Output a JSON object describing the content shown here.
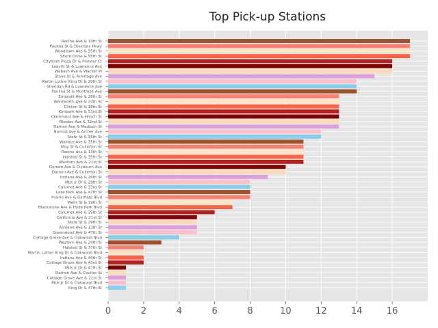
{
  "chart_data": {
    "type": "bar",
    "orientation": "horizontal",
    "title": "Top Pick-up Stations",
    "xlabel": "",
    "ylabel": "",
    "xlim": [
      0,
      18
    ],
    "xticks": [
      0,
      2,
      4,
      6,
      8,
      10,
      12,
      14,
      16
    ],
    "grid": true,
    "style": "ggplot",
    "colors": [
      "#a0522d",
      "#fa8072",
      "#ffe4c4",
      "#ff6347",
      "#b22222",
      "#800000",
      "#ffdab9",
      "#dda0dd",
      "#ffc0cb",
      "#87ceeb"
    ],
    "categories": [
      "Racine Ave & 19th St",
      "Paulina St & Diversey Pkwy",
      "Woodlawn Ave & 55th St",
      "Shore Drive & 55th St",
      "Cityfront Plaza Dr & Pioneer Ct",
      "Leavitt St & Lawrence Ave",
      "Wabash Ave & Wacker Pl",
      "Stave St & Armitage Ave",
      "Martin Luther King Dr & 29th St",
      "Sheridan Rd & Lawrence Ave",
      "Paulina St & Montrose Ave",
      "Emerald Ave & 28th St",
      "Wentworth Ave & 24th St",
      "Clinton St & 18th St",
      "Kimbark Ave & 53rd St",
      "Claremont Ave & Hirsch St",
      "Rhodes Ave & 32nd St",
      "Damen Ave & Madison St",
      "Normal Ave & Archer Ave",
      "State St & 35th St",
      "Wallace Ave & 35th St",
      "May St & Cullerton St",
      "Racine Ave & 13th St",
      "Halsted St & 35th St",
      "Western Ave & 21st St",
      "Damen Ave & Clybourn Ave",
      "Damen Ave & Cullerton St",
      "Indiana Ave & 26th St",
      "MLK Jr Dr & 29th St",
      "Calumet Ave & 33rd St",
      "Lake Park Ave & 47th St",
      "Prairie Ave & Garfield Blvd",
      "Wells St & 19th St",
      "Blackstone Ave & Hyde Park Blvd",
      "Calumet Ave & 35th St",
      "California Ave & 21st St",
      "State St & 29th St",
      "Ashland Ave & 13th St",
      "Greenwood Ave & 47th St",
      "Cottage Grove Ave & Oakwood Blvd",
      "Western Ave & 24th St",
      "Halsted St & 37th St",
      "Martin Luther King Dr & Oakwood Blvd",
      "Indiana Ave & 40th St",
      "Cottage Grove Ave & 43rd St",
      "MLK Jr Dr & 47th St",
      "Damen Ave & Coulter St",
      "Cottage Grove Ave & 21st St",
      "MLK Jr Dr & Oakwood Blvd",
      "King Dr & 47th St"
    ],
    "values": [
      17,
      17,
      17,
      17,
      16,
      16,
      16,
      15,
      14,
      14,
      14,
      13,
      13,
      13,
      13,
      13,
      13,
      13,
      12,
      12,
      11,
      11,
      11,
      11,
      11,
      10,
      10,
      9,
      8,
      8,
      8,
      8,
      7,
      7,
      6,
      5,
      5,
      5,
      5,
      4,
      3,
      2,
      2,
      2,
      2,
      1,
      1,
      1,
      1,
      1
    ]
  }
}
